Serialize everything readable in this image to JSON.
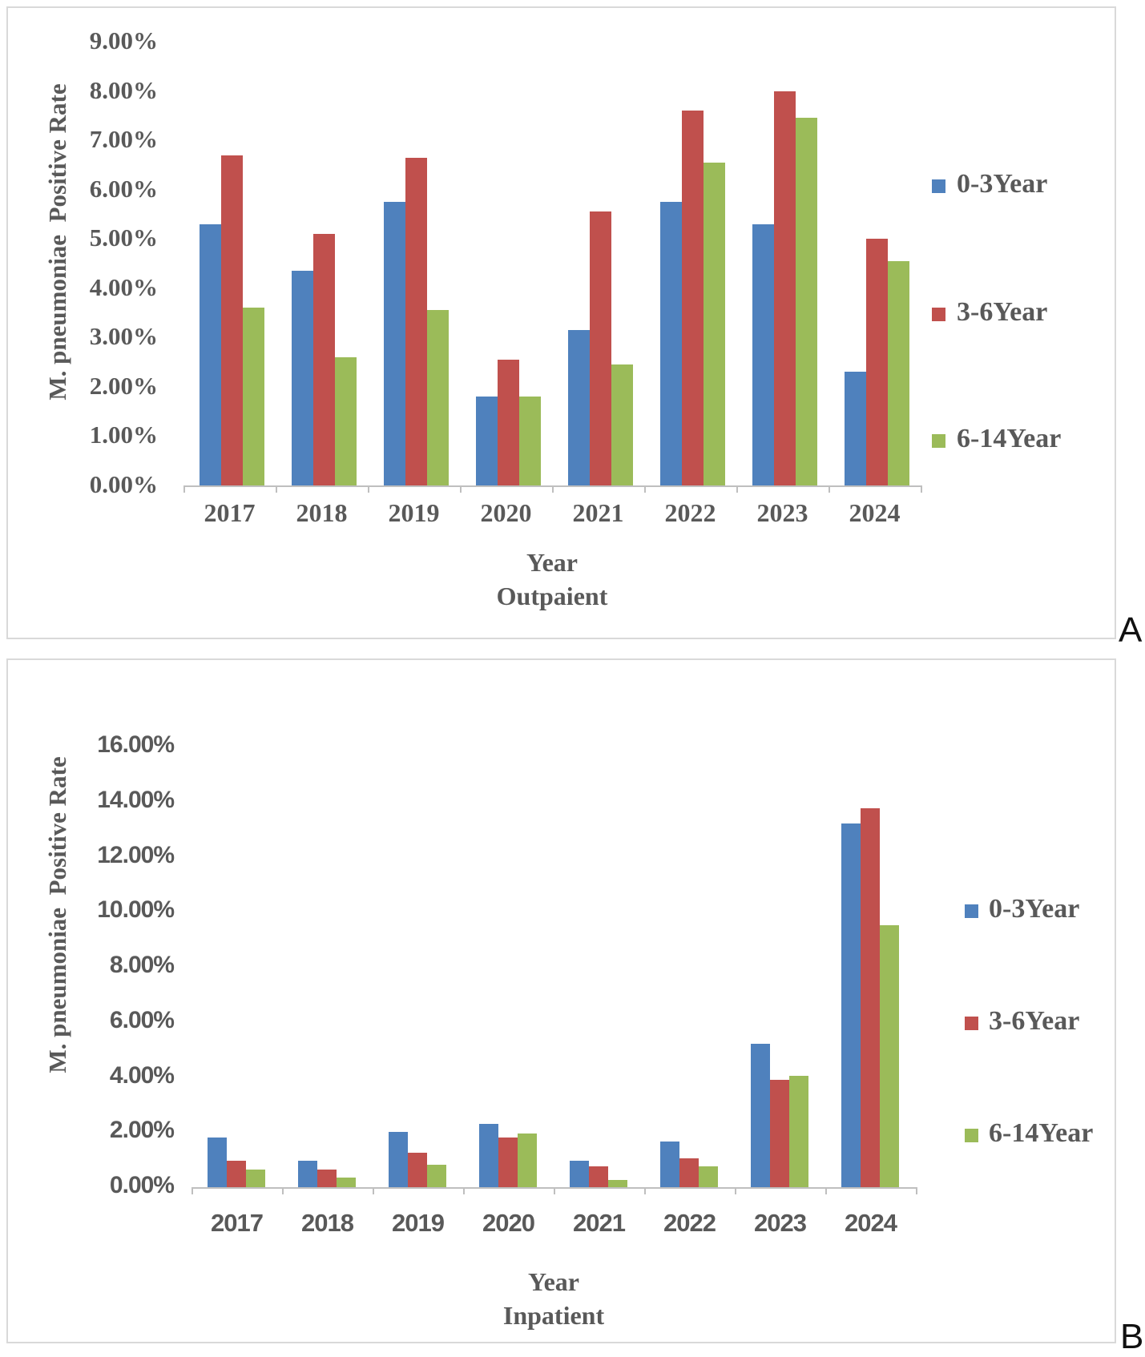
{
  "figure_labels": {
    "panel_a": "A",
    "panel_b": "B"
  },
  "chart_data": [
    {
      "type": "bar",
      "panel_label": "A",
      "ylabel": "M. pneumoniae  Positive Rate",
      "xlabel_line1": "Year",
      "xlabel_line2": "Outpaient",
      "ylim": [
        0,
        9
      ],
      "ytick_step": 1,
      "grid": false,
      "legend_position": "right",
      "yticks": [
        "9.00%",
        "8.00%",
        "7.00%",
        "6.00%",
        "5.00%",
        "4.00%",
        "3.00%",
        "2.00%",
        "1.00%",
        "0.00%"
      ],
      "categories": [
        "2017",
        "2018",
        "2019",
        "2020",
        "2021",
        "2022",
        "2023",
        "2024"
      ],
      "series": [
        {
          "name": "0-3Year",
          "color": "#4F81BD",
          "values": [
            5.3,
            4.35,
            5.75,
            1.8,
            3.15,
            5.75,
            5.3,
            2.3
          ]
        },
        {
          "name": "3-6Year",
          "color": "#C0504D",
          "values": [
            6.7,
            5.1,
            6.65,
            2.55,
            5.55,
            7.6,
            8.0,
            5.0
          ]
        },
        {
          "name": "6-14Year",
          "color": "#9BBB59",
          "values": [
            3.6,
            2.6,
            3.55,
            1.8,
            2.45,
            6.55,
            7.45,
            4.55
          ]
        }
      ]
    },
    {
      "type": "bar",
      "panel_label": "B",
      "ylabel": "M. pneumoniae  Positive Rate",
      "xlabel_line1": "Year",
      "xlabel_line2": "Inpatient",
      "ylim": [
        0,
        16
      ],
      "ytick_step": 2,
      "grid": false,
      "legend_position": "right",
      "yticks": [
        "16.00%",
        "14.00%",
        "12.00%",
        "10.00%",
        "8.00%",
        "6.00%",
        "4.00%",
        "2.00%",
        "0.00%"
      ],
      "categories": [
        "2017",
        "2018",
        "2019",
        "2020",
        "2021",
        "2022",
        "2023",
        "2024"
      ],
      "series": [
        {
          "name": "0-3Year",
          "color": "#4F81BD",
          "values": [
            1.8,
            0.95,
            2.0,
            2.3,
            0.95,
            1.65,
            5.2,
            13.2
          ]
        },
        {
          "name": "3-6Year",
          "color": "#C0504D",
          "values": [
            0.95,
            0.65,
            1.25,
            1.8,
            0.75,
            1.05,
            3.9,
            13.75
          ]
        },
        {
          "name": "6-14Year",
          "color": "#9BBB59",
          "values": [
            0.65,
            0.35,
            0.8,
            1.95,
            0.25,
            0.75,
            4.05,
            9.5
          ]
        }
      ]
    }
  ]
}
